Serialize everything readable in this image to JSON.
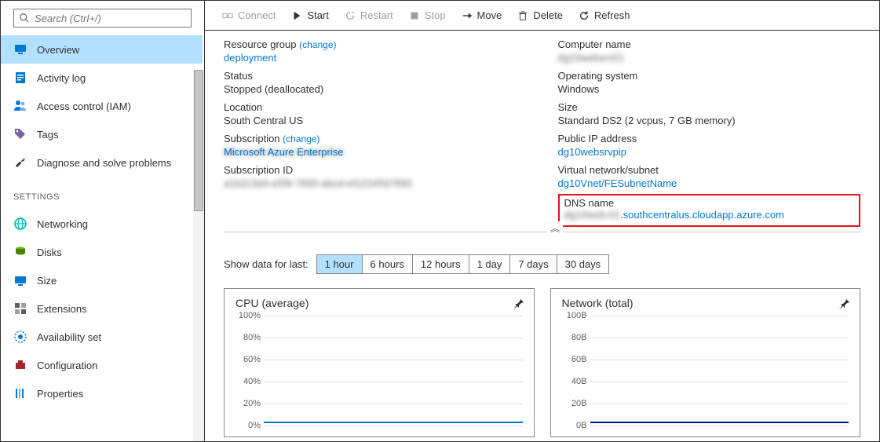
{
  "search": {
    "placeholder": "Search (Ctrl+/)"
  },
  "sidebar": {
    "items": [
      {
        "label": "Overview",
        "icon": "monitor",
        "active": true
      },
      {
        "label": "Activity log",
        "icon": "log"
      },
      {
        "label": "Access control (IAM)",
        "icon": "iam"
      },
      {
        "label": "Tags",
        "icon": "tag"
      },
      {
        "label": "Diagnose and solve problems",
        "icon": "wrench"
      }
    ],
    "settings_header": "SETTINGS",
    "settings_items": [
      {
        "label": "Networking",
        "icon": "globe"
      },
      {
        "label": "Disks",
        "icon": "disks"
      },
      {
        "label": "Size",
        "icon": "size"
      },
      {
        "label": "Extensions",
        "icon": "ext"
      },
      {
        "label": "Availability set",
        "icon": "avail"
      },
      {
        "label": "Configuration",
        "icon": "config"
      },
      {
        "label": "Properties",
        "icon": "props"
      }
    ]
  },
  "toolbar": {
    "connect": "Connect",
    "start": "Start",
    "restart": "Restart",
    "stop": "Stop",
    "move": "Move",
    "delete": "Delete",
    "refresh": "Refresh"
  },
  "essentials": {
    "left": {
      "resource_group_label": "Resource group",
      "resource_group_change": "(change)",
      "resource_group_value": "deployment",
      "status_label": "Status",
      "status_value": "Stopped (deallocated)",
      "location_label": "Location",
      "location_value": "South Central US",
      "subscription_label": "Subscription",
      "subscription_change": "(change)",
      "subscription_value": "Microsoft Azure Enterprise",
      "subscription_id_label": "Subscription ID",
      "subscription_id_value": "a1b2c3d4-e5f6-7890-abcd-ef1234567890"
    },
    "right": {
      "computer_name_label": "Computer name",
      "computer_name_value": "dg10websrv01",
      "os_label": "Operating system",
      "os_value": "Windows",
      "size_label": "Size",
      "size_value": "Standard DS2 (2 vcpus, 7 GB memory)",
      "pip_label": "Public IP address",
      "pip_value": "dg10websrvpip",
      "vnet_label": "Virtual network/subnet",
      "vnet_value": "dg10Vnet/FESubnetName",
      "dns_label": "DNS name",
      "dns_prefix": "dg10web-01",
      "dns_suffix": ".southcentralus.cloudapp.azure.com"
    }
  },
  "timerange": {
    "label": "Show data for last:",
    "options": [
      "1 hour",
      "6 hours",
      "12 hours",
      "1 day",
      "7 days",
      "30 days"
    ],
    "active_index": 0
  },
  "charts": {
    "cpu": {
      "title": "CPU (average)",
      "ticks": [
        "100%",
        "80%",
        "60%",
        "40%",
        "20%",
        "0%"
      ],
      "series_color": "#0078d4",
      "grid_color": "#e1dfdd",
      "value_baseline_pct": 2
    },
    "net": {
      "title": "Network (total)",
      "ticks": [
        "100B",
        "80B",
        "60B",
        "40B",
        "20B",
        "0B"
      ],
      "series_color": "#00188f",
      "grid_color": "#e1dfdd",
      "value_baseline_pct": 2
    }
  },
  "colors": {
    "accent": "#0078d4",
    "selection_bg": "#b3e0ff",
    "border_dark": "#333333",
    "highlight_red": "#e81123"
  }
}
